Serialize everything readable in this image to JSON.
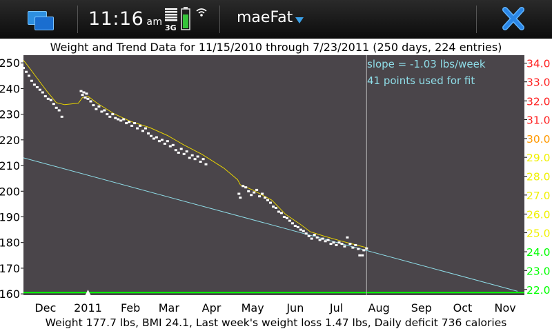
{
  "statusbar": {
    "time": "11:16",
    "time_suffix": "am",
    "network_label": "3G",
    "app_title": "maeFat",
    "icons": [
      "task-switcher-icon",
      "signal-strength-icon",
      "battery-icon",
      "wifi-icon",
      "dropdown-arrow-icon",
      "close-icon"
    ]
  },
  "colors": {
    "plot_background": "#4a454a",
    "weight_points": "#ffffff",
    "trend_line": "#e6d200",
    "fit_line": "#8fdde8",
    "goal_line": "#00ff00",
    "bmi_red": "#ff2020",
    "bmi_orange": "#ff9900",
    "bmi_yellow": "#f0f000",
    "bmi_green": "#00ff00",
    "annotation": "#8fdde8"
  },
  "chart_data": {
    "type": "scatter",
    "title": "Weight and Trend Data for 11/15/2010 through 7/23/2011   (250 days, 224 entries)",
    "annotations": [
      "slope =  -1.03 lbs/week",
      "41 points used for fit"
    ],
    "footer": "Weight 177.7 lbs,  BMI 24.1,  Last week's weight loss 1.47 lbs,  Daily deficit 736 calories",
    "x_range": [
      "2010-11-15",
      "2011-11-15"
    ],
    "ylim": [
      159.5,
      253
    ],
    "x_ticks": [
      {
        "label": "Dec",
        "date": "2010-12-01"
      },
      {
        "label": "2011",
        "date": "2011-01-01"
      },
      {
        "label": "Feb",
        "date": "2011-02-01"
      },
      {
        "label": "Mar",
        "date": "2011-03-01"
      },
      {
        "label": "Apr",
        "date": "2011-04-01"
      },
      {
        "label": "May",
        "date": "2011-05-01"
      },
      {
        "label": "Jun",
        "date": "2011-06-01"
      },
      {
        "label": "Jul",
        "date": "2011-07-01"
      },
      {
        "label": "Aug",
        "date": "2011-08-01"
      },
      {
        "label": "Sep",
        "date": "2011-09-01"
      },
      {
        "label": "Oct",
        "date": "2011-10-01"
      },
      {
        "label": "Nov",
        "date": "2011-11-01"
      }
    ],
    "y_ticks_left": [
      160,
      170,
      180,
      190,
      200,
      210,
      220,
      230,
      240,
      250
    ],
    "bmi_ticks_right": [
      {
        "label": "22.0",
        "weight": 161.7,
        "color": "#00ff00"
      },
      {
        "label": "23.0",
        "weight": 169.1,
        "color": "#00ff00"
      },
      {
        "label": "24.0",
        "weight": 176.4,
        "color": "#00ff00"
      },
      {
        "label": "25.0",
        "weight": 183.8,
        "color": "#f0f000"
      },
      {
        "label": "26.0",
        "weight": 191.1,
        "color": "#f0f000"
      },
      {
        "label": "27.0",
        "weight": 198.5,
        "color": "#f0f000"
      },
      {
        "label": "28.0",
        "weight": 205.8,
        "color": "#f0f000"
      },
      {
        "label": "29.0",
        "weight": 213.2,
        "color": "#f0f000"
      },
      {
        "label": "30.0",
        "weight": 220.5,
        "color": "#ff9900"
      },
      {
        "label": "31.0",
        "weight": 227.9,
        "color": "#ff2020"
      },
      {
        "label": "32.0",
        "weight": 235.2,
        "color": "#ff2020"
      },
      {
        "label": "33.0",
        "weight": 242.6,
        "color": "#ff2020"
      },
      {
        "label": "34.0",
        "weight": 249.9,
        "color": "#ff2020"
      }
    ],
    "goal_weight": 160.5,
    "today": "2011-07-23",
    "fit_line": [
      {
        "date": "2010-11-15",
        "weight": 213.0
      },
      {
        "date": "2011-11-10",
        "weight": 161.0
      }
    ],
    "trend": [
      {
        "date": "2010-11-15",
        "weight": 251.0
      },
      {
        "date": "2010-11-18",
        "weight": 249.0
      },
      {
        "date": "2010-11-25",
        "weight": 244.0
      },
      {
        "date": "2010-12-02",
        "weight": 239.0
      },
      {
        "date": "2010-12-09",
        "weight": 234.5
      },
      {
        "date": "2010-12-15",
        "weight": 233.7
      },
      {
        "date": "2010-12-25",
        "weight": 234.3
      },
      {
        "date": "2010-12-28",
        "weight": 236.5
      },
      {
        "date": "2011-01-01",
        "weight": 237.0
      },
      {
        "date": "2011-01-08",
        "weight": 234.2
      },
      {
        "date": "2011-01-20",
        "weight": 230.2
      },
      {
        "date": "2011-02-01",
        "weight": 227.2
      },
      {
        "date": "2011-02-15",
        "weight": 224.8
      },
      {
        "date": "2011-02-28",
        "weight": 221.7
      },
      {
        "date": "2011-03-12",
        "weight": 218.0
      },
      {
        "date": "2011-03-25",
        "weight": 214.4
      },
      {
        "date": "2011-04-10",
        "weight": 209.0
      },
      {
        "date": "2011-04-20",
        "weight": 204.5
      },
      {
        "date": "2011-04-22",
        "weight": 202.5
      },
      {
        "date": "2011-05-01",
        "weight": 200.5
      },
      {
        "date": "2011-05-15",
        "weight": 196.5
      },
      {
        "date": "2011-05-25",
        "weight": 191.0
      },
      {
        "date": "2011-06-05",
        "weight": 187.0
      },
      {
        "date": "2011-06-12",
        "weight": 184.2
      },
      {
        "date": "2011-06-22",
        "weight": 182.5
      },
      {
        "date": "2011-07-05",
        "weight": 180.5
      },
      {
        "date": "2011-07-23",
        "weight": 178.0
      }
    ],
    "weights": [
      {
        "date": "2010-11-15",
        "weight": 248.0
      },
      {
        "date": "2010-11-17",
        "weight": 246.5
      },
      {
        "date": "2010-11-19",
        "weight": 245.0
      },
      {
        "date": "2010-11-21",
        "weight": 243.0
      },
      {
        "date": "2010-11-23",
        "weight": 241.5
      },
      {
        "date": "2010-11-25",
        "weight": 240.5
      },
      {
        "date": "2010-11-27",
        "weight": 239.5
      },
      {
        "date": "2010-11-29",
        "weight": 238.5
      },
      {
        "date": "2010-12-01",
        "weight": 237.0
      },
      {
        "date": "2010-12-03",
        "weight": 236.0
      },
      {
        "date": "2010-12-05",
        "weight": 235.5
      },
      {
        "date": "2010-12-07",
        "weight": 234.0
      },
      {
        "date": "2010-12-09",
        "weight": 232.5
      },
      {
        "date": "2010-12-11",
        "weight": 231.5
      },
      {
        "date": "2010-12-13",
        "weight": 229.0
      },
      {
        "date": "2010-12-27",
        "weight": 239.0
      },
      {
        "date": "2010-12-28",
        "weight": 237.5
      },
      {
        "date": "2010-12-29",
        "weight": 238.5
      },
      {
        "date": "2010-12-30",
        "weight": 236.5
      },
      {
        "date": "2010-12-31",
        "weight": 238.0
      },
      {
        "date": "2011-01-01",
        "weight": 236.0
      },
      {
        "date": "2011-01-03",
        "weight": 235.0
      },
      {
        "date": "2011-01-05",
        "weight": 233.5
      },
      {
        "date": "2011-01-07",
        "weight": 232.0
      },
      {
        "date": "2011-01-09",
        "weight": 233.0
      },
      {
        "date": "2011-01-11",
        "weight": 231.0
      },
      {
        "date": "2011-01-13",
        "weight": 231.5
      },
      {
        "date": "2011-01-15",
        "weight": 230.0
      },
      {
        "date": "2011-01-17",
        "weight": 229.0
      },
      {
        "date": "2011-01-19",
        "weight": 230.0
      },
      {
        "date": "2011-01-21",
        "weight": 228.5
      },
      {
        "date": "2011-01-23",
        "weight": 228.0
      },
      {
        "date": "2011-01-25",
        "weight": 227.5
      },
      {
        "date": "2011-01-27",
        "weight": 228.0
      },
      {
        "date": "2011-01-29",
        "weight": 226.5
      },
      {
        "date": "2011-01-31",
        "weight": 227.0
      },
      {
        "date": "2011-02-02",
        "weight": 225.5
      },
      {
        "date": "2011-02-04",
        "weight": 226.5
      },
      {
        "date": "2011-02-06",
        "weight": 224.5
      },
      {
        "date": "2011-02-08",
        "weight": 225.5
      },
      {
        "date": "2011-02-10",
        "weight": 223.5
      },
      {
        "date": "2011-02-12",
        "weight": 224.5
      },
      {
        "date": "2011-02-14",
        "weight": 222.5
      },
      {
        "date": "2011-02-16",
        "weight": 221.5
      },
      {
        "date": "2011-02-18",
        "weight": 220.5
      },
      {
        "date": "2011-02-20",
        "weight": 221.0
      },
      {
        "date": "2011-02-22",
        "weight": 219.5
      },
      {
        "date": "2011-02-24",
        "weight": 220.0
      },
      {
        "date": "2011-02-26",
        "weight": 218.5
      },
      {
        "date": "2011-02-28",
        "weight": 219.5
      },
      {
        "date": "2011-03-02",
        "weight": 217.5
      },
      {
        "date": "2011-03-04",
        "weight": 218.0
      },
      {
        "date": "2011-03-06",
        "weight": 216.0
      },
      {
        "date": "2011-03-08",
        "weight": 215.0
      },
      {
        "date": "2011-03-10",
        "weight": 216.5
      },
      {
        "date": "2011-03-12",
        "weight": 214.5
      },
      {
        "date": "2011-03-14",
        "weight": 215.5
      },
      {
        "date": "2011-03-16",
        "weight": 213.0
      },
      {
        "date": "2011-03-18",
        "weight": 214.0
      },
      {
        "date": "2011-03-20",
        "weight": 212.5
      },
      {
        "date": "2011-03-22",
        "weight": 213.5
      },
      {
        "date": "2011-03-24",
        "weight": 211.5
      },
      {
        "date": "2011-03-26",
        "weight": 212.5
      },
      {
        "date": "2011-03-28",
        "weight": 210.5
      },
      {
        "date": "2011-04-21",
        "weight": 199.0
      },
      {
        "date": "2011-04-22",
        "weight": 197.5
      },
      {
        "date": "2011-04-24",
        "weight": 202.0
      },
      {
        "date": "2011-04-26",
        "weight": 201.5
      },
      {
        "date": "2011-04-28",
        "weight": 200.0
      },
      {
        "date": "2011-04-30",
        "weight": 198.5
      },
      {
        "date": "2011-05-02",
        "weight": 199.5
      },
      {
        "date": "2011-05-04",
        "weight": 200.5
      },
      {
        "date": "2011-05-06",
        "weight": 198.0
      },
      {
        "date": "2011-05-08",
        "weight": 199.0
      },
      {
        "date": "2011-05-10",
        "weight": 197.5
      },
      {
        "date": "2011-05-12",
        "weight": 196.5
      },
      {
        "date": "2011-05-14",
        "weight": 195.5
      },
      {
        "date": "2011-05-16",
        "weight": 194.0
      },
      {
        "date": "2011-05-18",
        "weight": 193.5
      },
      {
        "date": "2011-05-20",
        "weight": 192.0
      },
      {
        "date": "2011-05-22",
        "weight": 191.5
      },
      {
        "date": "2011-05-24",
        "weight": 190.0
      },
      {
        "date": "2011-05-26",
        "weight": 189.5
      },
      {
        "date": "2011-05-28",
        "weight": 188.5
      },
      {
        "date": "2011-05-30",
        "weight": 187.5
      },
      {
        "date": "2011-06-01",
        "weight": 186.5
      },
      {
        "date": "2011-06-03",
        "weight": 186.0
      },
      {
        "date": "2011-06-05",
        "weight": 185.0
      },
      {
        "date": "2011-06-07",
        "weight": 184.5
      },
      {
        "date": "2011-06-09",
        "weight": 183.5
      },
      {
        "date": "2011-06-11",
        "weight": 182.5
      },
      {
        "date": "2011-06-13",
        "weight": 181.5
      },
      {
        "date": "2011-06-15",
        "weight": 183.0
      },
      {
        "date": "2011-06-17",
        "weight": 182.0
      },
      {
        "date": "2011-06-19",
        "weight": 181.0
      },
      {
        "date": "2011-06-21",
        "weight": 181.5
      },
      {
        "date": "2011-06-23",
        "weight": 180.5
      },
      {
        "date": "2011-06-25",
        "weight": 181.0
      },
      {
        "date": "2011-06-27",
        "weight": 179.5
      },
      {
        "date": "2011-06-29",
        "weight": 180.0
      },
      {
        "date": "2011-07-01",
        "weight": 179.0
      },
      {
        "date": "2011-07-03",
        "weight": 180.0
      },
      {
        "date": "2011-07-05",
        "weight": 179.5
      },
      {
        "date": "2011-07-07",
        "weight": 178.5
      },
      {
        "date": "2011-07-09",
        "weight": 182.0
      },
      {
        "date": "2011-07-11",
        "weight": 179.5
      },
      {
        "date": "2011-07-13",
        "weight": 178.0
      },
      {
        "date": "2011-07-15",
        "weight": 179.0
      },
      {
        "date": "2011-07-17",
        "weight": 177.5
      },
      {
        "date": "2011-07-18",
        "weight": 175.0
      },
      {
        "date": "2011-07-20",
        "weight": 175.0
      },
      {
        "date": "2011-07-21",
        "weight": 177.0
      },
      {
        "date": "2011-07-23",
        "weight": 177.7
      }
    ]
  }
}
